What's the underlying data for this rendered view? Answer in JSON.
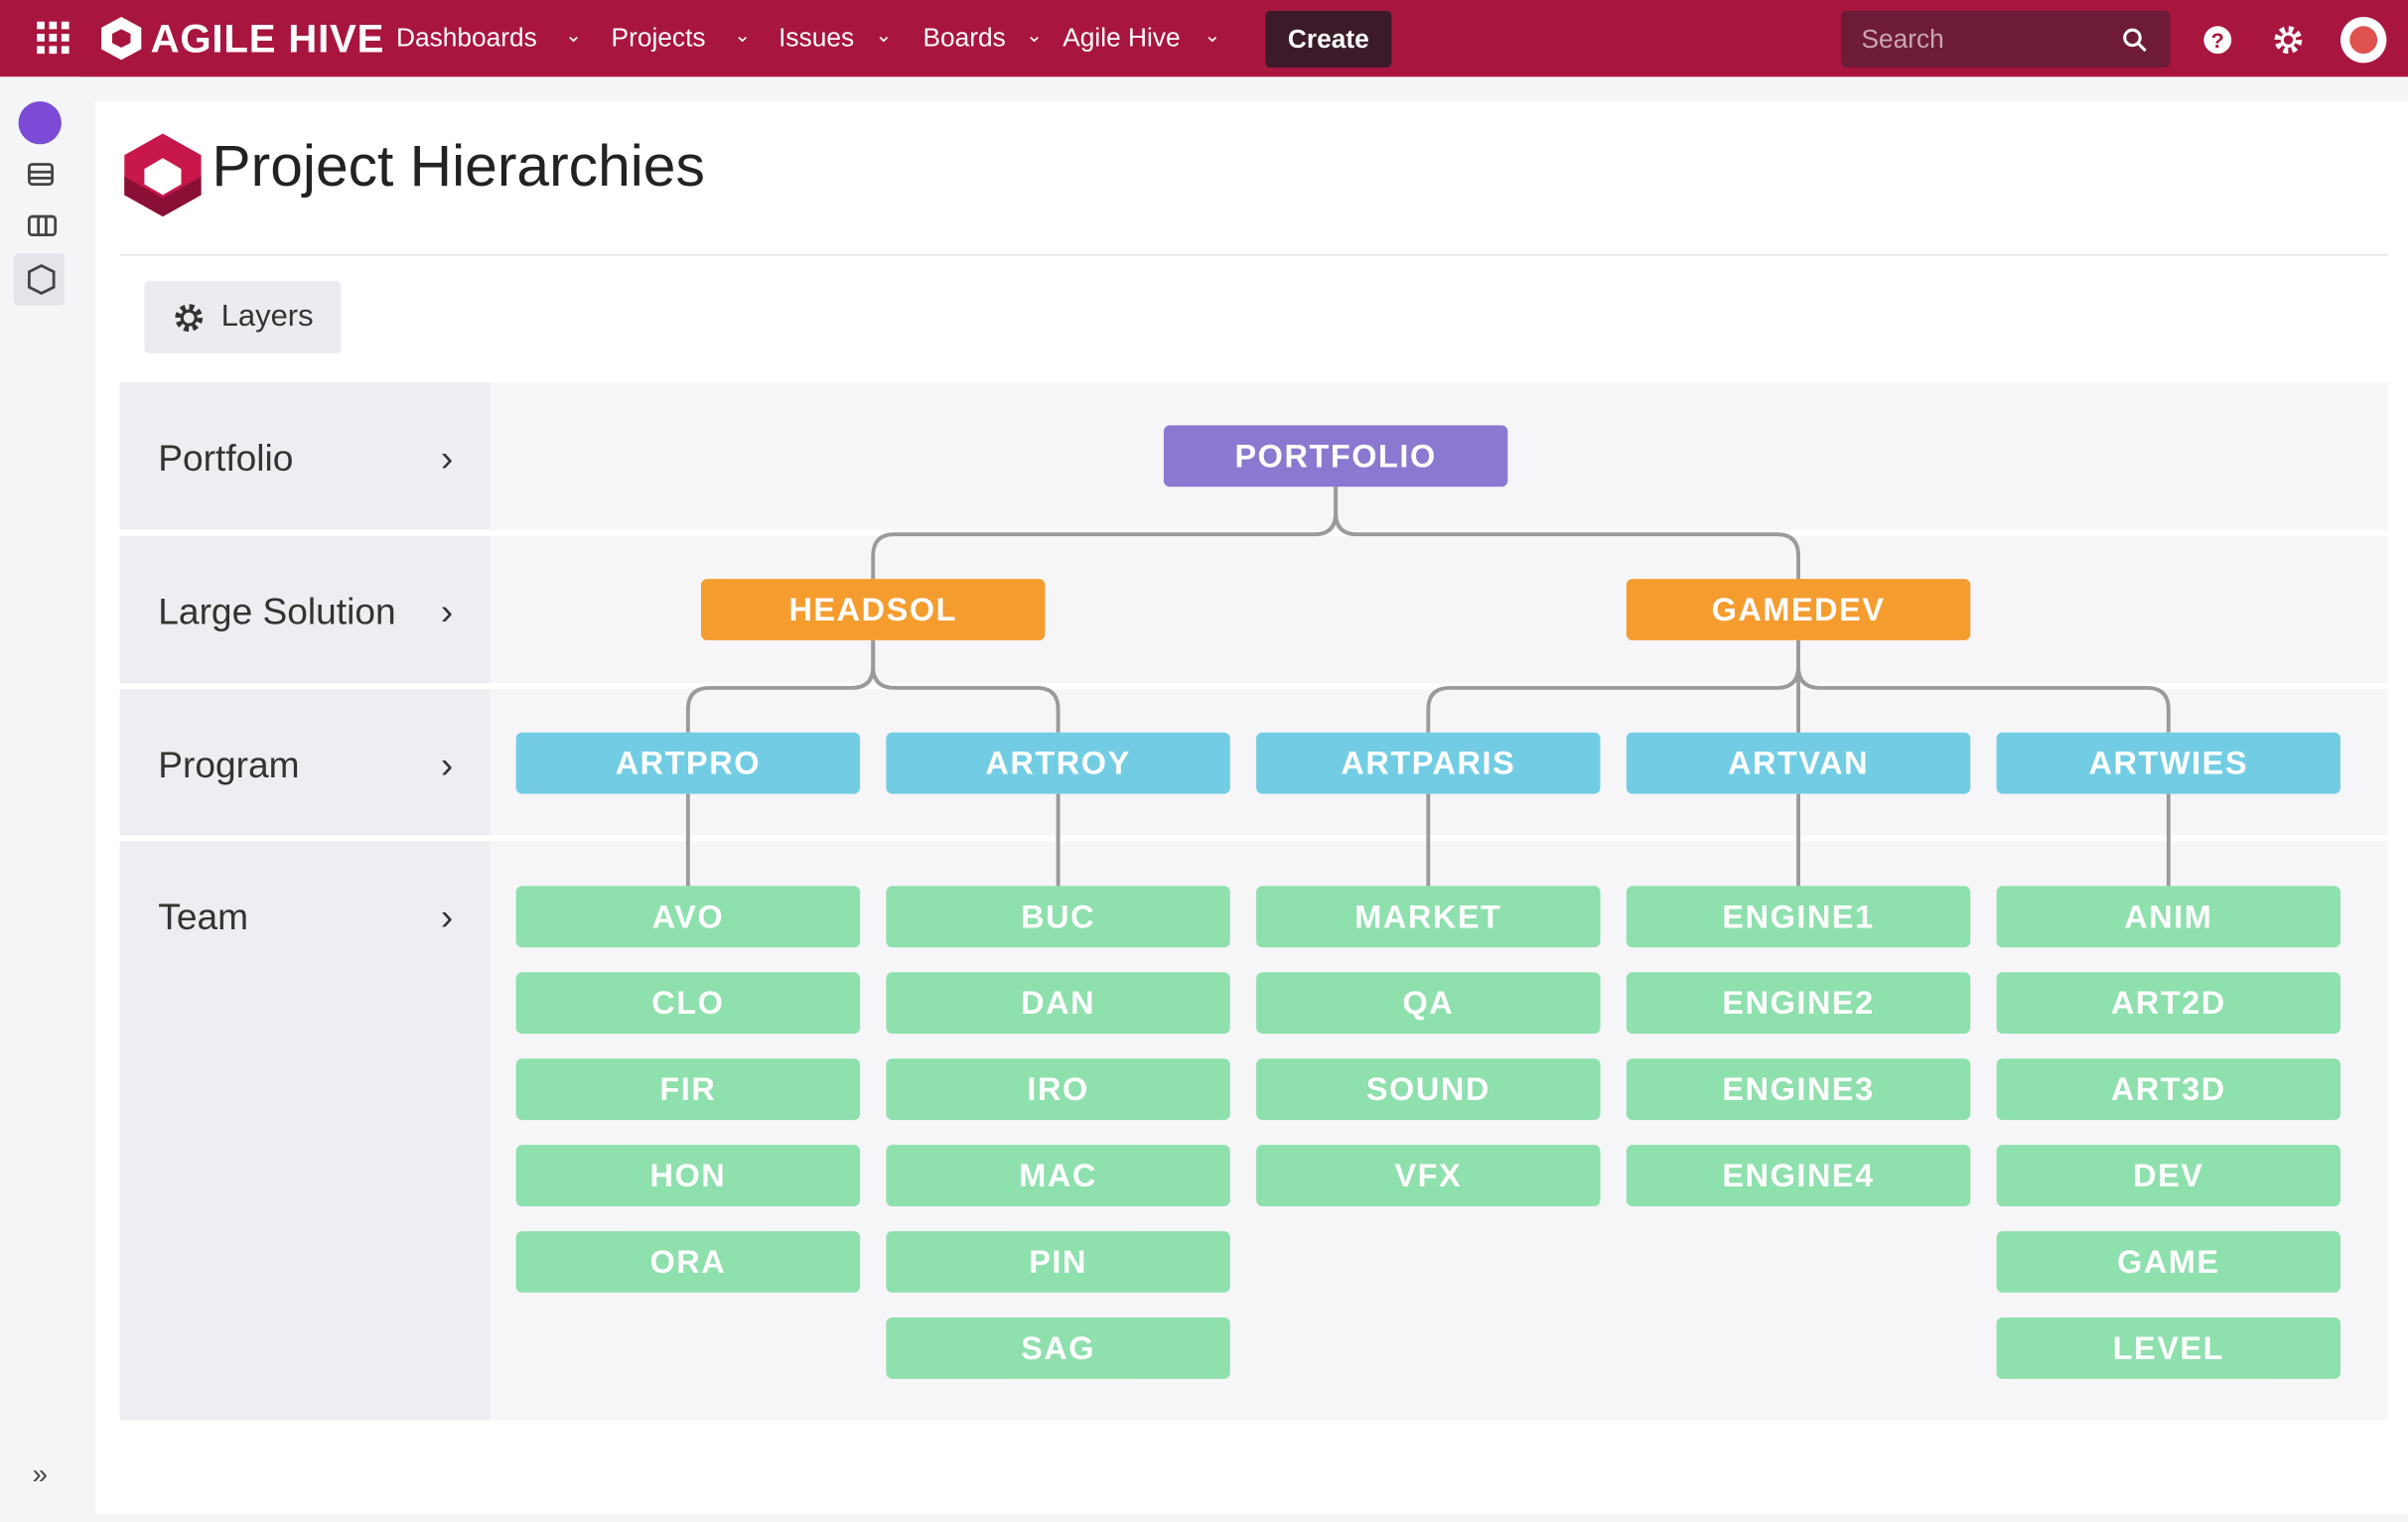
{
  "nav": {
    "brand": "AGILE HIVE",
    "items": [
      "Dashboards",
      "Projects",
      "Issues",
      "Boards",
      "Agile Hive"
    ],
    "create": "Create",
    "search": "Search"
  },
  "page": {
    "title": "Project Hierarchies",
    "layers_button": "Layers"
  },
  "levels": [
    "Portfolio",
    "Large Solution",
    "Program",
    "Team"
  ],
  "tree": {
    "portfolio": "PORTFOLIO",
    "solutions": [
      {
        "name": "HEADSOL",
        "programs": [
          {
            "name": "ARTPRO",
            "teams": [
              "AVO",
              "CLO",
              "FIR",
              "HON",
              "ORA"
            ]
          },
          {
            "name": "ARTROY",
            "teams": [
              "BUC",
              "DAN",
              "IRO",
              "MAC",
              "PIN",
              "SAG"
            ]
          }
        ]
      },
      {
        "name": "GAMEDEV",
        "programs": [
          {
            "name": "ARTPARIS",
            "teams": [
              "MARKET",
              "QA",
              "SOUND",
              "VFX"
            ]
          },
          {
            "name": "ARTVAN",
            "teams": [
              "ENGINE1",
              "ENGINE2",
              "ENGINE3",
              "ENGINE4"
            ]
          },
          {
            "name": "ARTWIES",
            "teams": [
              "ANIM",
              "ART2D",
              "ART3D",
              "DEV",
              "GAME",
              "LEVEL"
            ]
          }
        ]
      }
    ]
  }
}
